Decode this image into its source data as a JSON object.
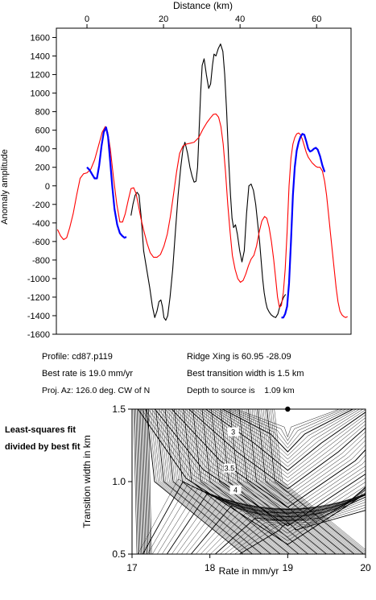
{
  "chart_data": [
    {
      "type": "line",
      "xlabel": "Distance (km)",
      "ylabel": "Anomaly amplitude",
      "xlim": [
        -8,
        69
      ],
      "ylim": [
        -1600,
        1700
      ],
      "xticks": [
        0,
        20,
        40,
        60
      ],
      "yticks": [
        -1600,
        -1400,
        -1200,
        -1000,
        -800,
        -600,
        -400,
        -200,
        0,
        200,
        400,
        600,
        800,
        1000,
        1200,
        1400,
        1600
      ],
      "x_axis_position": "top",
      "grid": false,
      "series": [
        {
          "color": "#000000",
          "x": [
            11.5,
            12.0,
            12.6,
            13.1,
            13.6,
            14.2,
            14.8,
            15.6,
            16.4,
            17.1,
            17.7,
            18.3,
            18.8,
            19.3,
            19.7,
            20.1,
            20.6,
            21.1,
            21.7,
            22.4,
            23.1,
            23.8,
            24.5,
            25.1,
            25.6,
            26.3,
            26.9,
            27.5,
            28.0,
            28.5,
            28.9,
            29.3,
            29.7,
            30.1,
            30.6,
            31.2,
            31.8,
            32.3,
            32.8,
            33.2,
            33.7,
            34.3,
            34.9,
            35.5,
            36.0,
            36.5,
            37.0,
            37.5,
            37.9,
            38.3,
            38.8,
            39.3,
            39.9,
            40.5,
            41.1,
            41.7,
            42.3,
            42.9,
            43.5,
            44.1,
            44.6,
            45.1,
            45.5,
            45.9,
            46.3,
            46.7,
            47.1,
            47.6,
            48.1,
            48.7,
            49.3,
            49.9,
            50.4,
            50.9,
            51.4,
            51.9
          ],
          "y": [
            -320,
            -200,
            -100,
            -70,
            -100,
            -350,
            -700,
            -900,
            -1100,
            -1300,
            -1420,
            -1350,
            -1250,
            -1230,
            -1300,
            -1420,
            -1450,
            -1400,
            -1200,
            -900,
            -500,
            -100,
            200,
            400,
            470,
            350,
            200,
            100,
            40,
            50,
            200,
            600,
            1000,
            1300,
            1370,
            1200,
            1050,
            1100,
            1300,
            1420,
            1400,
            1480,
            1530,
            1450,
            1200,
            800,
            300,
            -100,
            -350,
            -450,
            -420,
            -520,
            -700,
            -820,
            -700,
            -300,
            0,
            20,
            -50,
            -200,
            -400,
            -600,
            -800,
            -1000,
            -1150,
            -1250,
            -1320,
            -1360,
            -1390,
            -1410,
            -1420,
            -1380,
            -1300,
            -1250,
            -1200,
            -1170
          ]
        },
        {
          "color": "#ff0000",
          "x": [
            -7.7,
            -6.9,
            -6.1,
            -5.3,
            -4.5,
            -3.6,
            -2.7,
            -1.8,
            -0.9,
            0.0,
            1.0,
            2.0,
            3.0,
            4.0,
            4.8,
            5.4,
            6.1,
            6.9,
            7.8,
            8.6,
            9.3,
            10.0,
            10.8,
            11.5,
            12.2,
            12.8,
            13.4,
            14.1,
            14.9,
            15.7,
            16.5,
            17.4,
            18.3,
            19.2,
            20.1,
            21.0,
            21.8,
            22.6,
            23.4,
            24.2,
            25.1,
            26.0,
            27.0,
            28.0,
            29.2,
            30.3,
            31.3,
            32.2,
            33.0,
            33.7,
            34.4,
            35.0,
            35.6,
            36.2,
            36.8,
            37.4,
            38.0,
            38.7,
            39.4,
            40.1,
            40.8,
            41.5,
            42.2,
            42.9,
            43.6,
            44.3,
            45.0,
            45.7,
            46.4,
            47.0,
            47.6,
            48.2,
            48.8,
            49.3,
            49.8,
            50.3,
            50.8,
            51.3,
            51.8,
            52.3,
            52.8,
            53.3,
            53.8,
            54.3,
            54.8,
            55.3,
            55.8,
            56.3,
            56.8,
            57.3,
            57.8,
            58.3,
            58.8,
            59.3,
            59.8,
            60.3,
            60.9,
            61.5,
            62.1,
            62.6,
            63.1,
            63.6,
            64.1,
            64.6,
            65.1,
            65.6,
            66.1,
            66.6,
            67.1,
            67.6,
            68.1
          ],
          "y": [
            -470,
            -540,
            -580,
            -560,
            -450,
            -300,
            -100,
            80,
            130,
            140,
            180,
            280,
            430,
            580,
            640,
            580,
            400,
            100,
            -200,
            -390,
            -390,
            -300,
            -150,
            -30,
            -20,
            -80,
            -200,
            -350,
            -490,
            -620,
            -720,
            -770,
            -770,
            -740,
            -650,
            -520,
            -330,
            -100,
            150,
            350,
            430,
            450,
            460,
            470,
            520,
            610,
            680,
            730,
            770,
            775,
            740,
            640,
            450,
            150,
            -200,
            -500,
            -750,
            -900,
            -1000,
            -1040,
            -1020,
            -950,
            -860,
            -790,
            -750,
            -650,
            -500,
            -380,
            -330,
            -350,
            -450,
            -600,
            -800,
            -1000,
            -1200,
            -1310,
            -1290,
            -1150,
            -900,
            -500,
            0,
            300,
            450,
            520,
            560,
            570,
            550,
            500,
            430,
            360,
            310,
            280,
            250,
            230,
            210,
            200,
            200,
            160,
            50,
            -100,
            -300,
            -500,
            -700,
            -900,
            -1100,
            -1250,
            -1350,
            -1390,
            -1410,
            -1420,
            -1410
          ]
        },
        {
          "color": "#0000ff",
          "x": [
            0.0,
            0.7,
            1.4,
            2.0,
            2.6,
            3.2,
            3.8,
            4.4,
            5.0,
            5.5,
            6.0,
            6.6,
            7.2,
            7.9,
            8.6,
            9.2,
            9.8,
            10.3
          ],
          "y": [
            200,
            170,
            120,
            80,
            80,
            220,
            430,
            580,
            630,
            530,
            300,
            0,
            -250,
            -420,
            -510,
            -540,
            -560,
            -550
          ]
        },
        {
          "color": "#0000ff",
          "x": [
            50.8,
            51.3,
            51.8,
            52.3,
            52.8,
            53.3,
            53.8,
            54.3,
            54.8,
            55.3,
            55.8,
            56.3,
            56.8,
            57.3,
            57.8,
            58.3,
            58.8,
            59.3,
            59.8,
            60.3,
            60.9,
            61.5,
            62.1
          ],
          "y": [
            -1420,
            -1420,
            -1380,
            -1300,
            -1050,
            -600,
            -100,
            200,
            380,
            470,
            530,
            560,
            550,
            480,
            400,
            370,
            380,
            400,
            410,
            390,
            320,
            220,
            150
          ]
        }
      ]
    },
    {
      "type": "contour",
      "xlabel": "Rate in mm/yr",
      "ylabel": "Transition width in km",
      "xlim": [
        17,
        20
      ],
      "ylim": [
        0.5,
        1.5
      ],
      "xticks": [
        17,
        18,
        19,
        20
      ],
      "yticks": [
        0.5,
        1.0,
        1.5
      ],
      "contour_labels": [
        {
          "text": "3",
          "x": 18.3,
          "y": 1.33
        },
        {
          "text": "3.5",
          "x": 18.25,
          "y": 1.08
        },
        {
          "text": "4",
          "x": 18.33,
          "y": 0.93
        }
      ],
      "best_fit_point": {
        "x": 19.0,
        "y": 1.5
      }
    }
  ],
  "info": {
    "profile": "Profile: cd87.p119",
    "ridge_xing": "Ridge Xing is 60.95 -28.09",
    "best_rate": "Best rate is 19.0 mm/yr",
    "best_transition": "Best transition width is 1.5 km",
    "proj_az": "Proj. Az: 126.0 deg. CW of N",
    "depth": "Depth to source is    1.09 km"
  },
  "note": "Least-squares fit divided by best fit"
}
